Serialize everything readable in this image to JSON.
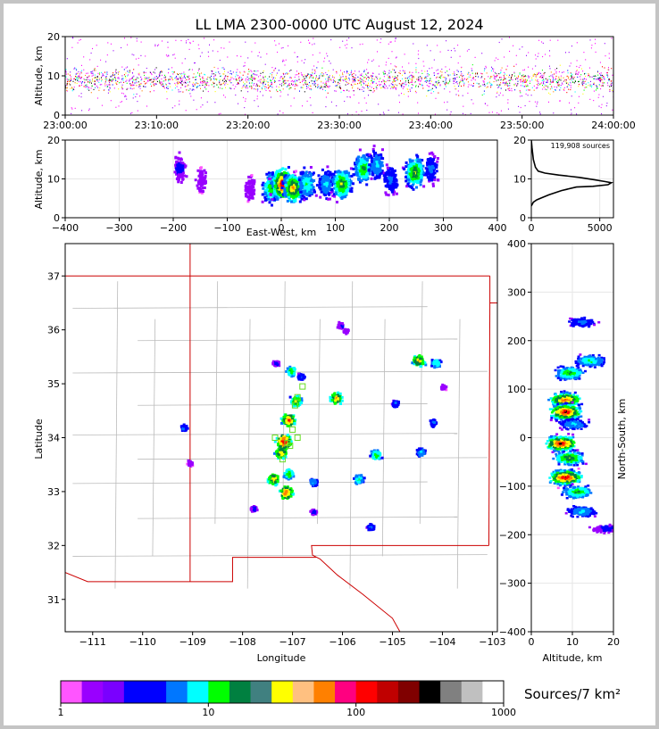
{
  "title": "LL LMA 2300-0000 UTC August 12, 2024",
  "colorbar_label": "Sources/7 km²",
  "source_count_label": "119,908 sources",
  "colors": {
    "frame": "#000000",
    "state_border": "#cc0000",
    "county_border": "#bbbbbb",
    "flash_marker": "#66dd22"
  },
  "chart_data": [
    {
      "id": "time_height",
      "type": "scatter",
      "ylabel": "Altitude, km",
      "xlabel": "",
      "x_ticks": [
        "23:00:00",
        "23:10:00",
        "23:20:00",
        "23:30:00",
        "23:40:00",
        "23:50:00",
        "24:00:00"
      ],
      "xlim": [
        "23:00:00",
        "24:00:00"
      ],
      "ylim": [
        0,
        20
      ],
      "y_ticks": [
        0,
        10,
        20
      ],
      "dense_band_km": [
        4,
        14
      ]
    },
    {
      "id": "ew_altitude",
      "type": "heatmap",
      "xlabel": "East-West, km",
      "ylabel": "Altitude, km",
      "xlim": [
        -400,
        400
      ],
      "x_ticks": [
        -400,
        -300,
        -200,
        -100,
        0,
        100,
        200,
        300,
        400
      ],
      "ylim": [
        0,
        20
      ],
      "y_ticks": [
        0,
        10,
        20
      ],
      "clusters": [
        {
          "x": -190,
          "z": 13,
          "level": 2
        },
        {
          "x": -150,
          "z": 10,
          "level": 1
        },
        {
          "x": -60,
          "z": 8,
          "level": 1
        },
        {
          "x": -20,
          "z": 8,
          "level": 6
        },
        {
          "x": 0,
          "z": 9,
          "level": 10
        },
        {
          "x": 20,
          "z": 8,
          "level": 8
        },
        {
          "x": 45,
          "z": 9,
          "level": 5
        },
        {
          "x": 80,
          "z": 9,
          "level": 4
        },
        {
          "x": 110,
          "z": 9,
          "level": 7
        },
        {
          "x": 150,
          "z": 13,
          "level": 6
        },
        {
          "x": 175,
          "z": 14,
          "level": 4
        },
        {
          "x": 200,
          "z": 10,
          "level": 3
        },
        {
          "x": 245,
          "z": 12,
          "level": 7
        },
        {
          "x": 275,
          "z": 13,
          "level": 3
        }
      ]
    },
    {
      "id": "altitude_histogram",
      "type": "line",
      "xlim": [
        0,
        6000
      ],
      "x_ticks": [
        0,
        5000
      ],
      "ylim": [
        0,
        20
      ],
      "y_ticks": [
        0,
        10,
        20
      ],
      "series": [
        {
          "points": [
            [
              0,
              20
            ],
            [
              50,
              18
            ],
            [
              150,
              15
            ],
            [
              300,
              13
            ],
            [
              500,
              12
            ],
            [
              1000,
              11.5
            ],
            [
              2000,
              11
            ],
            [
              3500,
              10.4
            ],
            [
              4600,
              9.8
            ],
            [
              5400,
              9.3
            ],
            [
              5850,
              9
            ],
            [
              5600,
              8.5
            ],
            [
              4500,
              8.1
            ],
            [
              3300,
              7.9
            ],
            [
              2200,
              7
            ],
            [
              1300,
              5.9
            ],
            [
              800,
              5.2
            ],
            [
              400,
              4.6
            ],
            [
              150,
              4
            ],
            [
              0,
              3
            ]
          ]
        }
      ]
    },
    {
      "id": "plan_map",
      "type": "heatmap",
      "xlabel": "Longitude",
      "ylabel": "Latitude",
      "xlim": [
        -111.55,
        -102.9
      ],
      "ylim": [
        30.4,
        37.6
      ],
      "x_ticks": [
        -111,
        -110,
        -109,
        -108,
        -107,
        -106,
        -105,
        -104,
        -103
      ],
      "y_ticks": [
        31,
        32,
        33,
        34,
        35,
        36,
        37
      ],
      "clusters": [
        {
          "lon": -109.2,
          "lat": 34.2,
          "level": 3
        },
        {
          "lon": -109.07,
          "lat": 33.55,
          "level": 1
        },
        {
          "lon": -107.8,
          "lat": 32.7,
          "level": 2
        },
        {
          "lon": -107.4,
          "lat": 33.25,
          "level": 8
        },
        {
          "lon": -107.15,
          "lat": 33.0,
          "level": 9
        },
        {
          "lon": -107.1,
          "lat": 33.35,
          "level": 6
        },
        {
          "lon": -107.25,
          "lat": 33.75,
          "level": 8
        },
        {
          "lon": -107.2,
          "lat": 33.95,
          "level": 10
        },
        {
          "lon": -107.1,
          "lat": 34.35,
          "level": 9
        },
        {
          "lon": -106.95,
          "lat": 34.7,
          "level": 7
        },
        {
          "lon": -107.05,
          "lat": 35.25,
          "level": 6
        },
        {
          "lon": -107.35,
          "lat": 35.4,
          "level": 2
        },
        {
          "lon": -106.85,
          "lat": 35.15,
          "level": 3
        },
        {
          "lon": -106.6,
          "lat": 33.2,
          "level": 4
        },
        {
          "lon": -106.6,
          "lat": 32.65,
          "level": 2
        },
        {
          "lon": -106.15,
          "lat": 34.75,
          "level": 8
        },
        {
          "lon": -106.05,
          "lat": 36.1,
          "level": 2
        },
        {
          "lon": -105.95,
          "lat": 36.0,
          "level": 1
        },
        {
          "lon": -105.7,
          "lat": 33.25,
          "level": 5
        },
        {
          "lon": -105.45,
          "lat": 32.35,
          "level": 3
        },
        {
          "lon": -105.35,
          "lat": 33.7,
          "level": 6
        },
        {
          "lon": -104.95,
          "lat": 34.65,
          "level": 3
        },
        {
          "lon": -104.5,
          "lat": 35.45,
          "level": 8
        },
        {
          "lon": -104.15,
          "lat": 35.4,
          "level": 5
        },
        {
          "lon": -104.2,
          "lat": 34.3,
          "level": 3
        },
        {
          "lon": -104.45,
          "lat": 33.75,
          "level": 4
        },
        {
          "lon": -104.0,
          "lat": 34.95,
          "level": 1
        }
      ]
    },
    {
      "id": "altitude_ns",
      "type": "heatmap",
      "xlabel": "Altitude, km",
      "ylabel": "North-South, km",
      "xlim": [
        0,
        20
      ],
      "x_ticks": [
        0,
        10,
        20
      ],
      "ylim": [
        -400,
        400
      ],
      "y_ticks": [
        -400,
        -300,
        -200,
        -100,
        0,
        100,
        200,
        300,
        400
      ],
      "clusters": [
        {
          "z": 12,
          "y": 240,
          "level": 3
        },
        {
          "z": 14,
          "y": 160,
          "level": 5
        },
        {
          "z": 9,
          "y": 135,
          "level": 6
        },
        {
          "z": 8,
          "y": 80,
          "level": 9
        },
        {
          "z": 8,
          "y": 55,
          "level": 10
        },
        {
          "z": 10,
          "y": 30,
          "level": 4
        },
        {
          "z": 7,
          "y": -10,
          "level": 10
        },
        {
          "z": 9,
          "y": -40,
          "level": 7
        },
        {
          "z": 8,
          "y": -80,
          "level": 10
        },
        {
          "z": 11,
          "y": -110,
          "level": 6
        },
        {
          "z": 12,
          "y": -150,
          "level": 4
        },
        {
          "z": 18,
          "y": -185,
          "level": 2
        }
      ]
    }
  ],
  "colorbar": {
    "type": "log",
    "min": 1,
    "max": 1000,
    "ticks": [
      1,
      10,
      100,
      1000
    ],
    "colors": [
      "#ff55ff",
      "#9900ff",
      "#7a00ff",
      "#0000ff",
      "#0000ff",
      "#0077ff",
      "#00ffff",
      "#00ff00",
      "#008040",
      "#408080",
      "#ffff00",
      "#ffc080",
      "#ff8000",
      "#ff0080",
      "#ff0000",
      "#c00000",
      "#800000",
      "#000000",
      "#808080",
      "#c0c0c0",
      "#ffffff"
    ]
  }
}
